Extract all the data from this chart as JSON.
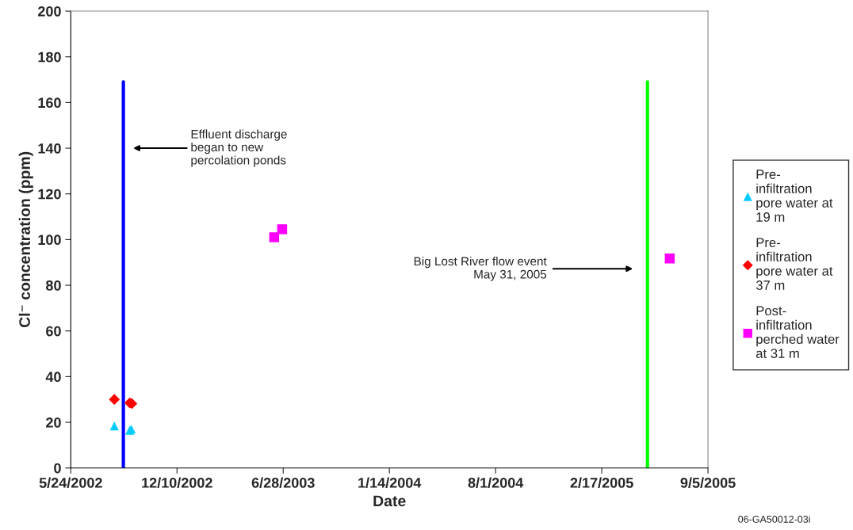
{
  "chart_data": {
    "type": "scatter",
    "xlabel": "Date",
    "ylabel": "Cl⁻ concentration (ppm)",
    "series": [
      {
        "name": "Pre-infiltration pore water at 19 m",
        "color": "#00ccff",
        "marker": "triangle",
        "x": [
          "2002-08-14",
          "2002-09-12",
          "2002-09-15"
        ],
        "values": [
          18.4,
          16.5,
          17.0
        ]
      },
      {
        "name": "Pre-infiltration pore water at 37 m",
        "color": "#ff0000",
        "marker": "diamond",
        "x": [
          "2002-08-14",
          "2002-09-12",
          "2002-09-16"
        ],
        "values": [
          30,
          28.5,
          28.2
        ]
      },
      {
        "name": "Post-infiltration perched water at 31 m",
        "color": "#ff00ff",
        "marker": "square",
        "x": [
          "2003-06-11",
          "2003-06-26",
          "2005-06-25"
        ],
        "values": [
          101,
          104.5,
          91.7
        ]
      },
      {
        "type": "line",
        "color": "#0000ff",
        "marker": "none",
        "x": [
          "2002-08-31",
          "2002-08-31"
        ],
        "values": [
          0,
          169
        ]
      },
      {
        "type": "line",
        "color": "#00ff00",
        "marker": "none",
        "x": [
          "2005-05-14",
          "2005-05-14"
        ],
        "values": [
          0,
          169
        ]
      }
    ],
    "xlim": [
      "2002-05-24",
      "2005-09-05"
    ],
    "xticks": [
      {
        "value": "2002-05-24",
        "label": "5/24/2002"
      },
      {
        "value": "2002-12-10",
        "label": "12/10/2002"
      },
      {
        "value": "2003-06-28",
        "label": "6/28/2003"
      },
      {
        "value": "2004-01-14",
        "label": "1/14/2004"
      },
      {
        "value": "2004-08-01",
        "label": "8/1/2004"
      },
      {
        "value": "2005-02-17",
        "label": "2/17/2005"
      },
      {
        "value": "2005-09-05",
        "label": "9/5/2005"
      }
    ],
    "ylim": [
      0,
      200
    ],
    "yticks": [
      0,
      20,
      40,
      60,
      80,
      100,
      120,
      140,
      160,
      180,
      200
    ],
    "grid": false,
    "legend": "right",
    "annotations": [
      "Effluent discharge began to new percolation ponds",
      "Big Lost River flow event May 31, 2005",
      "06-GA50012-03i"
    ]
  }
}
